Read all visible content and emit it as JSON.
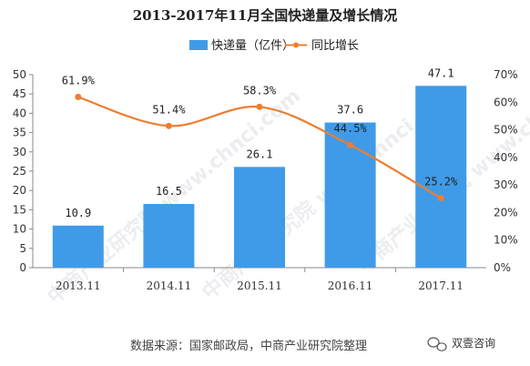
{
  "chart_data": {
    "type": "bar",
    "title": "2013-2017年11月全国快递量及增长情况",
    "categories": [
      "2013.11",
      "2014.11",
      "2015.11",
      "2016.11",
      "2017.11"
    ],
    "series": [
      {
        "name": "快递量（亿件）",
        "type": "bar",
        "axis": "left",
        "values": [
          10.9,
          16.5,
          26.1,
          37.6,
          47.1
        ],
        "value_labels": [
          "10.9",
          "16.5",
          "26.1",
          "37.6",
          "47.1"
        ],
        "color": "#3f9be8"
      },
      {
        "name": "同比增长",
        "type": "line",
        "axis": "right",
        "values": [
          61.9,
          51.4,
          58.3,
          44.5,
          25.2
        ],
        "value_labels": [
          "61.9%",
          "51.4%",
          "58.3%",
          "44.5%",
          "25.2%"
        ],
        "color": "#ee7d31"
      }
    ],
    "y_left": {
      "min": 0,
      "max": 50,
      "ticks": [
        0,
        5,
        10,
        15,
        20,
        25,
        30,
        35,
        40,
        45,
        50
      ],
      "tick_labels": [
        "0",
        "5",
        "10",
        "15",
        "20",
        "25",
        "30",
        "35",
        "40",
        "45",
        "50"
      ]
    },
    "y_right": {
      "min": 0,
      "max": 70,
      "ticks": [
        0,
        10,
        20,
        30,
        40,
        50,
        60,
        70
      ],
      "tick_labels": [
        "0%",
        "10%",
        "20%",
        "30%",
        "40%",
        "50%",
        "60%",
        "70%"
      ]
    },
    "legend_position": "top-center",
    "grid": false
  },
  "source": "数据来源：国家邮政局，中商产业研究院整理",
  "brand": "双壹咨询",
  "watermark": "中商产业研究院 www.chnci.com"
}
